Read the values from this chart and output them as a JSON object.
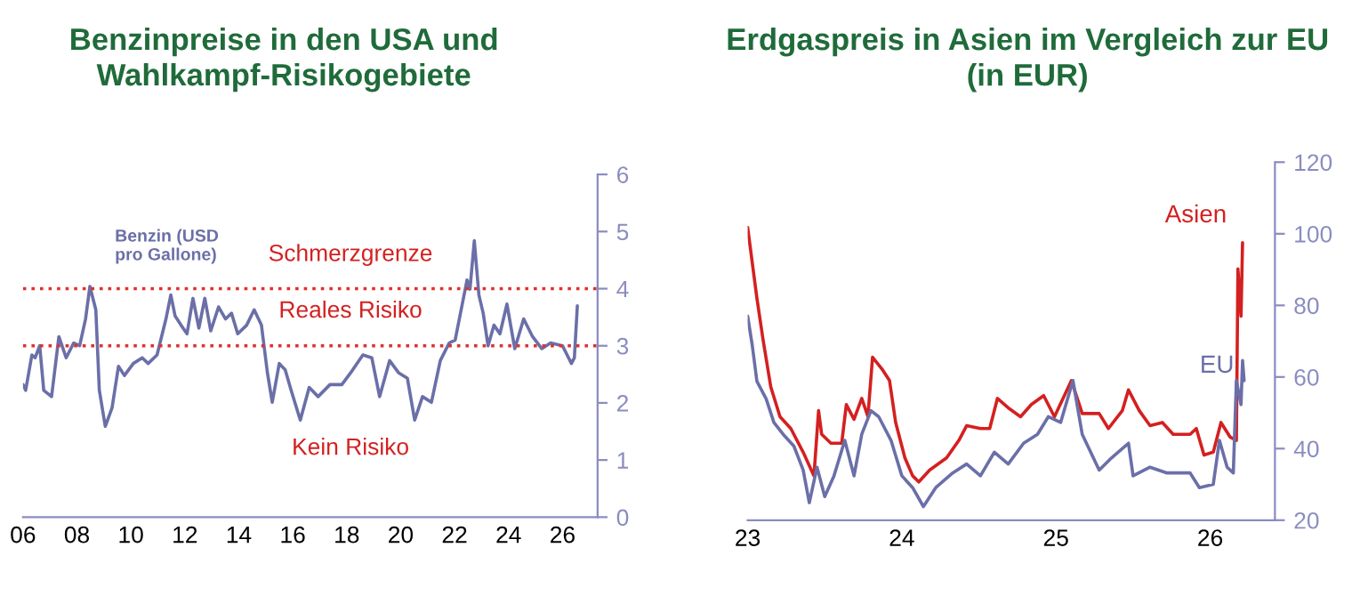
{
  "chart_data": [
    {
      "type": "line",
      "title": "Benzinpreise in den USA und\nWahlkampf-Risikogebiete",
      "xlim": [
        2006,
        2027.3
      ],
      "xticks": [
        {
          "value": 2006,
          "label": "06"
        },
        {
          "value": 2008,
          "label": "08"
        },
        {
          "value": 2010,
          "label": "10"
        },
        {
          "value": 2012,
          "label": "12"
        },
        {
          "value": 2014,
          "label": "14"
        },
        {
          "value": 2016,
          "label": "16"
        },
        {
          "value": 2018,
          "label": "18"
        },
        {
          "value": 2020,
          "label": "20"
        },
        {
          "value": 2022,
          "label": "22"
        },
        {
          "value": 2024,
          "label": "24"
        },
        {
          "value": 2026,
          "label": "26"
        }
      ],
      "ylim": [
        0,
        6
      ],
      "yticks": [
        0,
        1,
        2,
        3,
        4,
        5,
        6
      ],
      "grid": false,
      "legend": false,
      "series": [
        {
          "name": "Benzin (USD\npro Gallone)",
          "color": "#6b6fa8",
          "x": [
            2006.0,
            2006.1,
            2006.33,
            2006.45,
            2006.62,
            2006.77,
            2007.06,
            2007.33,
            2007.6,
            2007.88,
            2008.1,
            2008.32,
            2008.48,
            2008.7,
            2008.83,
            2009.05,
            2009.3,
            2009.54,
            2009.76,
            2010.09,
            2010.42,
            2010.64,
            2010.97,
            2011.3,
            2011.48,
            2011.64,
            2011.86,
            2012.08,
            2012.3,
            2012.52,
            2012.74,
            2012.96,
            2013.25,
            2013.51,
            2013.73,
            2013.96,
            2014.29,
            2014.57,
            2014.84,
            2015.06,
            2015.24,
            2015.5,
            2015.72,
            2015.94,
            2016.28,
            2016.61,
            2016.94,
            2017.38,
            2017.82,
            2018.15,
            2018.6,
            2018.93,
            2019.22,
            2019.59,
            2019.92,
            2020.25,
            2020.52,
            2020.81,
            2021.14,
            2021.47,
            2021.8,
            2022.02,
            2022.46,
            2022.57,
            2022.73,
            2022.9,
            2023.06,
            2023.24,
            2023.46,
            2023.68,
            2023.94,
            2024.23,
            2024.56,
            2024.89,
            2025.23,
            2025.56,
            2026.0,
            2026.33,
            2026.44,
            2026.55
          ],
          "values": [
            2.32,
            2.22,
            2.84,
            2.79,
            3.0,
            2.22,
            2.11,
            3.16,
            2.79,
            3.05,
            3.0,
            3.47,
            4.04,
            3.63,
            2.22,
            1.59,
            1.91,
            2.64,
            2.48,
            2.69,
            2.79,
            2.69,
            2.84,
            3.47,
            3.89,
            3.52,
            3.36,
            3.21,
            3.83,
            3.31,
            3.83,
            3.26,
            3.68,
            3.47,
            3.57,
            3.21,
            3.36,
            3.63,
            3.36,
            2.53,
            2.01,
            2.69,
            2.58,
            2.22,
            1.7,
            2.27,
            2.11,
            2.32,
            2.32,
            2.53,
            2.84,
            2.79,
            2.11,
            2.74,
            2.53,
            2.43,
            1.7,
            2.11,
            2.01,
            2.74,
            3.05,
            3.1,
            4.15,
            3.99,
            4.84,
            3.89,
            3.57,
            3.0,
            3.36,
            3.21,
            3.73,
            2.95,
            3.47,
            3.16,
            2.95,
            3.05,
            3.0,
            2.69,
            2.79,
            3.7
          ]
        }
      ],
      "ref_lines": [
        {
          "axis": "y",
          "value": 4,
          "color": "#e03030",
          "line_style": "dotted"
        },
        {
          "axis": "y",
          "value": 3,
          "color": "#e03030",
          "line_style": "dotted"
        }
      ],
      "annotations": [
        "Schmerzgrenze",
        "Reales Risiko",
        "Kein Risiko"
      ]
    },
    {
      "type": "line",
      "title": "Erdgaspreis in Asien im Vergleich zur EU\n(in EUR)",
      "xlim": [
        2023,
        2026.42
      ],
      "xticks": [
        {
          "value": 2023,
          "label": "23"
        },
        {
          "value": 2024,
          "label": "24"
        },
        {
          "value": 2025,
          "label": "25"
        },
        {
          "value": 2026,
          "label": "26"
        }
      ],
      "ylim": [
        20,
        120
      ],
      "yticks": [
        20,
        40,
        60,
        80,
        100,
        120
      ],
      "grid": false,
      "legend": false,
      "series": [
        {
          "name": "Asien",
          "color": "#d42020",
          "x": [
            2023.0,
            2023.03,
            2023.06,
            2023.1,
            2023.15,
            2023.21,
            2023.28,
            2023.36,
            2023.43,
            2023.46,
            2023.48,
            2023.54,
            2023.61,
            2023.64,
            2023.69,
            2023.74,
            2023.78,
            2023.81,
            2023.87,
            2023.92,
            2023.96,
            2024.02,
            2024.07,
            2024.11,
            2024.18,
            2024.29,
            2024.37,
            2024.42,
            2024.51,
            2024.57,
            2024.62,
            2024.69,
            2024.77,
            2024.84,
            2024.92,
            2024.99,
            2025.1,
            2025.17,
            2025.28,
            2025.34,
            2025.43,
            2025.47,
            2025.54,
            2025.61,
            2025.69,
            2025.76,
            2025.87,
            2025.91,
            2025.96,
            2026.02,
            2026.07,
            2026.13,
            2026.17,
            2026.18,
            2026.2,
            2026.21
          ],
          "values": [
            101.8,
            91.9,
            82,
            70.4,
            57.2,
            48.9,
            45.6,
            39,
            32.4,
            50.6,
            44,
            41.5,
            41.5,
            52.3,
            48.2,
            54,
            49,
            65.5,
            62.3,
            59,
            47.3,
            37.4,
            32.4,
            30.7,
            34,
            37.4,
            42.3,
            46.4,
            45.6,
            45.6,
            54,
            51.4,
            48.9,
            52.3,
            54.8,
            48.9,
            59,
            49.8,
            49.8,
            45.6,
            50.6,
            56.4,
            50.6,
            46.4,
            47.3,
            44,
            44,
            45.6,
            38.2,
            39,
            47.3,
            43.2,
            42.3,
            90.2,
            77,
            97.5
          ]
        },
        {
          "name": "EU",
          "color": "#6b6fa8",
          "x": [
            2023.0,
            2023.03,
            2023.06,
            2023.12,
            2023.17,
            2023.23,
            2023.3,
            2023.36,
            2023.4,
            2023.45,
            2023.5,
            2023.56,
            2023.63,
            2023.69,
            2023.74,
            2023.8,
            2023.85,
            2023.93,
            2024.0,
            2024.07,
            2024.14,
            2024.22,
            2024.33,
            2024.42,
            2024.51,
            2024.6,
            2024.69,
            2024.79,
            2024.88,
            2024.95,
            2025.03,
            2025.11,
            2025.17,
            2025.28,
            2025.36,
            2025.47,
            2025.5,
            2025.61,
            2025.72,
            2025.87,
            2025.93,
            2026.02,
            2026.06,
            2026.11,
            2026.15,
            2026.17,
            2026.2,
            2026.21,
            2026.22
          ],
          "values": [
            77,
            68.8,
            58.8,
            53.9,
            47.3,
            44,
            40.7,
            34,
            24.9,
            34.8,
            26.6,
            32.4,
            42.3,
            32.4,
            44,
            50.6,
            48.9,
            42.3,
            32.4,
            29.1,
            23.8,
            29.1,
            33.2,
            35.7,
            32.4,
            39,
            35.7,
            41.5,
            44,
            48.9,
            47.3,
            59,
            44,
            34,
            37.4,
            41.5,
            32.4,
            34.8,
            33.2,
            33.2,
            29.1,
            30,
            42.3,
            34.8,
            33.2,
            59,
            52.3,
            64.6,
            59
          ]
        }
      ]
    }
  ]
}
